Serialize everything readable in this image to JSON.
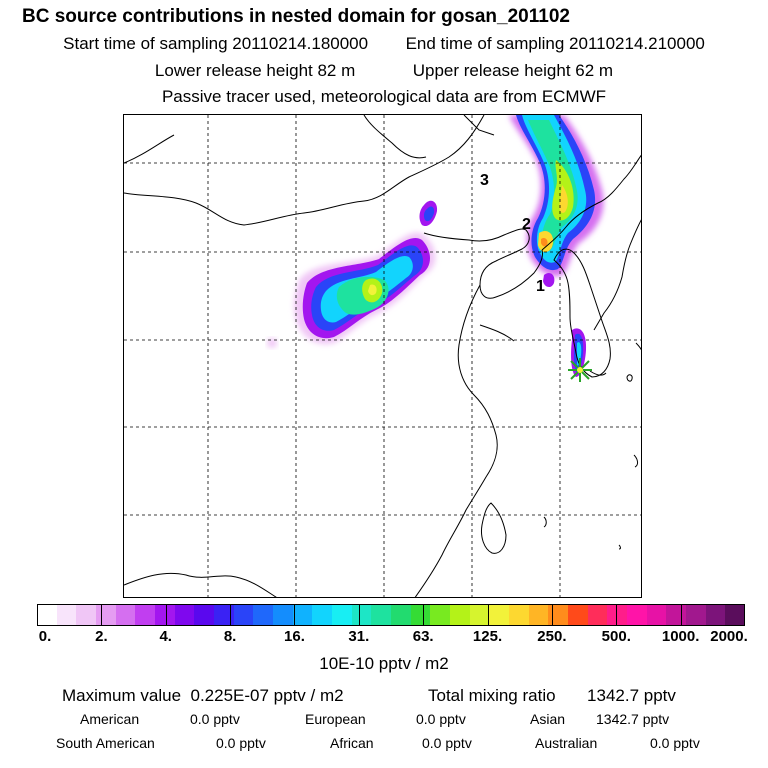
{
  "header": {
    "title": "BC  source contributions in nested domain for gosan_201102",
    "start_time": "Start time of sampling 20110214.180000",
    "end_time": "End time of sampling 20110214.210000",
    "lower_height": "Lower release height   82 m",
    "upper_height": "Upper release height   62 m",
    "note": "Passive tracer used, meteorological data are from ECMWF"
  },
  "map": {
    "labels": [
      "3",
      "2",
      "1"
    ],
    "receptor_marker": "asterisk-icon"
  },
  "colorbar": {
    "ticks": [
      "0.",
      "2.",
      "4.",
      "8.",
      "16.",
      "31.",
      "63.",
      "125.",
      "250.",
      "500.",
      "1000.",
      "2000."
    ],
    "colors": [
      "#ffffff",
      "#f8e4fb",
      "#f0c6f6",
      "#e59cf2",
      "#d56ff0",
      "#c13ef0",
      "#a316ef",
      "#7f08ee",
      "#5a08ee",
      "#3a22f4",
      "#2a44f8",
      "#1f68fb",
      "#148dfd",
      "#10b2fe",
      "#12d4fd",
      "#18eef3",
      "#1de6c6",
      "#1ee29f",
      "#22db6f",
      "#35dc35",
      "#78ea20",
      "#b4f218",
      "#d6f42e",
      "#f2f23a",
      "#fdd830",
      "#ffb525",
      "#ff8c1c",
      "#ff4a1a",
      "#ff2d5a",
      "#ff1d8a",
      "#ff14a8",
      "#e712a6",
      "#c2159a",
      "#a1188e",
      "#7c147a",
      "#5a0d5c"
    ],
    "units": "10E-10 pptv / m2"
  },
  "stats": {
    "max_label": "Maximum value",
    "max_value": "0.225E-07 pptv / m2",
    "total_label": "Total mixing ratio",
    "total_value": "1342.7 pptv",
    "regions": [
      {
        "name": "American",
        "value": "0.0 pptv"
      },
      {
        "name": "European",
        "value": "0.0 pptv"
      },
      {
        "name": "Asian",
        "value": "1342.7 pptv"
      },
      {
        "name": "South American",
        "value": "0.0 pptv"
      },
      {
        "name": "African",
        "value": "0.0 pptv"
      },
      {
        "name": "Australian",
        "value": "0.0 pptv"
      }
    ]
  }
}
